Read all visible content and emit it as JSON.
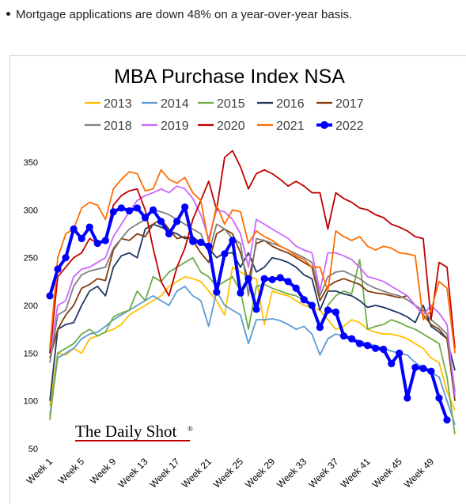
{
  "bullet": "Mortgage applications are down 48% on a year-over-year basis.",
  "brand": "The Daily Shot",
  "brand_mark": "®",
  "chart_data": {
    "type": "line",
    "title": "MBA Purchase Index NSA",
    "xlabel": "",
    "ylabel": "",
    "ylim": [
      50,
      360
    ],
    "yticks": [
      50,
      100,
      150,
      200,
      250,
      300,
      350
    ],
    "x_tick_labels": [
      "Week 1",
      "Week 5",
      "Week 9",
      "Week 13",
      "Week 17",
      "Week 21",
      "Week 25",
      "Week 29",
      "Week 33",
      "Week 37",
      "Week 41",
      "Week 45",
      "Week 49"
    ],
    "legend_position": "top",
    "grid": false,
    "series": [
      {
        "name": "2013",
        "color": "#ffc000",
        "values": [
          95,
          150,
          148,
          155,
          150,
          165,
          168,
          172,
          175,
          180,
          190,
          195,
          200,
          205,
          210,
          220,
          225,
          230,
          228,
          225,
          215,
          205,
          190,
          240,
          235,
          230,
          228,
          180,
          215,
          212,
          210,
          205,
          200,
          198,
          195,
          185,
          175,
          178,
          185,
          182,
          175,
          172,
          170,
          170,
          168,
          165,
          160,
          155,
          145,
          140,
          110,
          90
        ]
      },
      {
        "name": "2014",
        "color": "#5b9bd5",
        "values": [
          85,
          145,
          150,
          155,
          165,
          170,
          172,
          178,
          185,
          190,
          195,
          200,
          205,
          210,
          205,
          200,
          215,
          220,
          210,
          205,
          178,
          215,
          200,
          195,
          190,
          160,
          185,
          185,
          186,
          184,
          180,
          175,
          178,
          170,
          148,
          165,
          170,
          168,
          165,
          163,
          160,
          158,
          155,
          152,
          150,
          148,
          140,
          135,
          130,
          125,
          100,
          75
        ]
      },
      {
        "name": "2015",
        "color": "#70ad47",
        "values": [
          80,
          150,
          155,
          160,
          170,
          175,
          168,
          172,
          188,
          192,
          195,
          215,
          205,
          230,
          225,
          235,
          240,
          245,
          250,
          235,
          230,
          220,
          225,
          230,
          215,
          175,
          220,
          222,
          218,
          215,
          212,
          210,
          205,
          202,
          175,
          200,
          210,
          215,
          212,
          248,
          175,
          178,
          180,
          185,
          182,
          178,
          175,
          170,
          165,
          160,
          125,
          65
        ]
      },
      {
        "name": "2016",
        "color": "#203864",
        "values": [
          100,
          175,
          180,
          182,
          200,
          215,
          220,
          210,
          240,
          252,
          255,
          250,
          280,
          285,
          282,
          278,
          275,
          270,
          272,
          265,
          260,
          250,
          255,
          255,
          240,
          255,
          235,
          240,
          250,
          248,
          245,
          240,
          232,
          228,
          195,
          215,
          215,
          212,
          210,
          205,
          198,
          200,
          198,
          195,
          192,
          188,
          182,
          200,
          178,
          172,
          165,
          132
        ]
      },
      {
        "name": "2017",
        "color": "#843c0c",
        "values": [
          145,
          175,
          190,
          200,
          218,
          222,
          228,
          226,
          258,
          270,
          268,
          275,
          272,
          285,
          290,
          280,
          270,
          272,
          268,
          255,
          245,
          275,
          280,
          275,
          255,
          225,
          265,
          268,
          262,
          258,
          255,
          250,
          245,
          240,
          205,
          220,
          225,
          228,
          225,
          222,
          215,
          213,
          212,
          210,
          208,
          210,
          200,
          190,
          180,
          175,
          165,
          100
        ]
      },
      {
        "name": "2018",
        "color": "#7f7f7f",
        "values": [
          140,
          190,
          195,
          220,
          232,
          236,
          238,
          240,
          260,
          270,
          280,
          285,
          290,
          300,
          298,
          295,
          290,
          285,
          280,
          275,
          255,
          285,
          280,
          270,
          265,
          210,
          270,
          268,
          265,
          262,
          258,
          254,
          250,
          245,
          210,
          230,
          235,
          236,
          232,
          228,
          222,
          218,
          215,
          212,
          210,
          206,
          200,
          195,
          185,
          178,
          170,
          110
        ]
      },
      {
        "name": "2019",
        "color": "#cc66ff",
        "values": [
          150,
          200,
          205,
          230,
          238,
          240,
          245,
          250,
          272,
          285,
          298,
          310,
          315,
          318,
          322,
          318,
          325,
          322,
          312,
          295,
          270,
          300,
          298,
          290,
          275,
          240,
          290,
          285,
          280,
          275,
          270,
          262,
          258,
          255,
          215,
          255,
          255,
          252,
          248,
          240,
          230,
          228,
          225,
          220,
          215,
          210,
          200,
          190,
          200,
          192,
          180,
          105
        ]
      },
      {
        "name": "2020",
        "color": "#c00000",
        "values": [
          150,
          230,
          240,
          250,
          255,
          270,
          265,
          270,
          305,
          315,
          320,
          322,
          300,
          260,
          225,
          210,
          240,
          260,
          290,
          310,
          330,
          300,
          355,
          362,
          345,
          322,
          338,
          342,
          338,
          332,
          325,
          330,
          325,
          318,
          318,
          280,
          318,
          312,
          308,
          302,
          300,
          295,
          292,
          285,
          282,
          278,
          272,
          270,
          185,
          245,
          240,
          155
        ]
      },
      {
        "name": "2021",
        "color": "#ff6d01",
        "values": [
          155,
          250,
          275,
          280,
          302,
          308,
          305,
          290,
          322,
          332,
          340,
          338,
          320,
          322,
          342,
          332,
          328,
          334,
          318,
          310,
          265,
          305,
          285,
          300,
          298,
          265,
          278,
          272,
          268,
          262,
          258,
          252,
          248,
          240,
          240,
          215,
          278,
          272,
          268,
          272,
          262,
          258,
          262,
          260,
          255,
          254,
          252,
          185,
          195,
          225,
          218,
          150
        ]
      },
      {
        "name": "2022",
        "color": "#0000ff",
        "values": [
          210,
          238,
          250,
          280,
          270,
          282,
          265,
          268,
          298,
          302,
          299,
          302,
          292,
          300,
          288,
          275,
          288,
          303,
          267,
          266,
          262,
          214,
          254,
          268,
          213,
          228,
          196,
          228,
          227,
          229,
          225,
          218,
          206,
          200,
          177,
          195,
          193,
          168,
          165,
          160,
          158,
          155,
          154,
          139,
          150,
          103,
          135,
          134,
          131,
          103,
          80
        ]
      }
    ]
  }
}
